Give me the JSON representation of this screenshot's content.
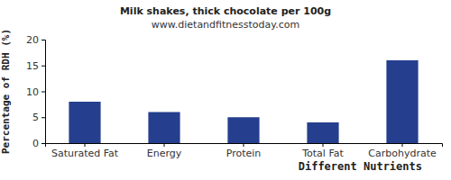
{
  "chart_data": {
    "type": "bar",
    "title": "Milk shakes, thick chocolate per 100g",
    "subtitle": "www.dietandfitnesstoday.com",
    "x_label": "Different Nutrients",
    "y_label": "Percentage of RDH (%)",
    "categories": [
      "Saturated Fat",
      "Energy",
      "Protein",
      "Total Fat",
      "Carbohydrate"
    ],
    "values": [
      8,
      6,
      5,
      4,
      16
    ],
    "color": "#253f8e",
    "ylim": [
      0,
      20
    ],
    "yticks": [
      0,
      5,
      10,
      15,
      20
    ],
    "grid": false
  }
}
